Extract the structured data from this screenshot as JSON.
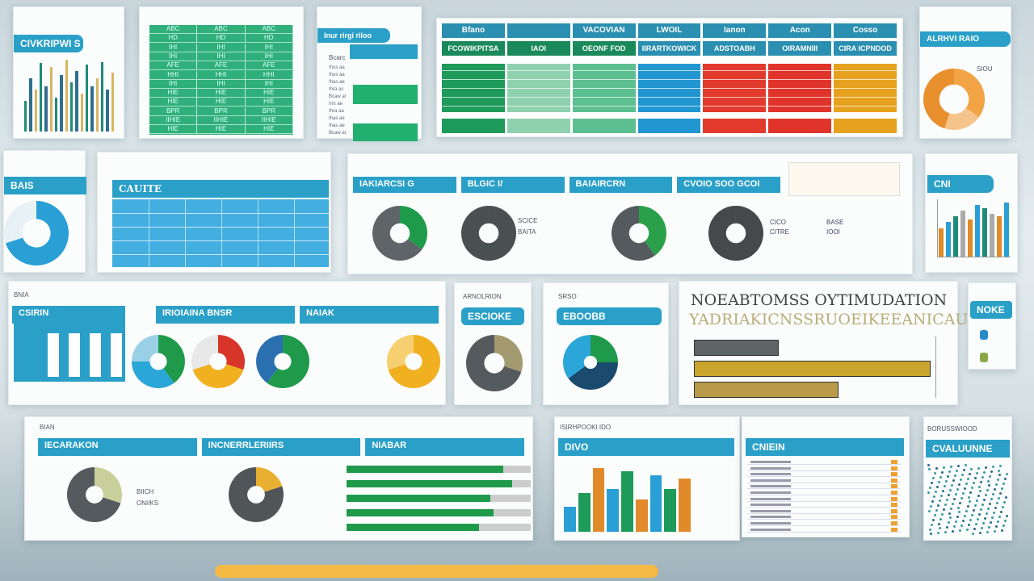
{
  "panels": {
    "p1": {
      "title": "CIVKRIPWI S",
      "bars": [
        40,
        70,
        55,
        90,
        60,
        85,
        45,
        75,
        95,
        65,
        80,
        50,
        88,
        60,
        70,
        92,
        55,
        78
      ],
      "colors": [
        "#1f8a7a",
        "#2f6f8f",
        "#d7b660"
      ]
    },
    "p2": {
      "rows": [
        "ABC",
        "HD",
        "IHI",
        "IHI",
        "AFE",
        "HHI",
        "IHI",
        "HIE",
        "HIE",
        "BPR",
        "IIHIE",
        "HIE"
      ]
    },
    "p3": {
      "title": "Inur rirgi riloo",
      "sub": "Bcarc",
      "rows": [
        "Ihus aa",
        "Ihus aa",
        "Ihas ae",
        "Ihra ac",
        "Bcaw ar",
        "Irm ae",
        "Ihra aa",
        "Ihas ae",
        "Ihas ae",
        "Bcaw ar"
      ]
    },
    "p4": {
      "headers": [
        "Bfano",
        "",
        "VACOVIAN",
        "LWOIL",
        "Ianon",
        "Acon",
        "Cosso"
      ],
      "subheaders": [
        "FCOWIKPITSA",
        "IAOI",
        "OEONF FOD",
        "IIRARTKOWICK",
        "ADSTOABH",
        "OIRAMNIII",
        "CIRA ICPNDOD"
      ],
      "colors": [
        "#1e9a5a",
        "#8fd1ad",
        "#5cbf8f",
        "#2196d0",
        "#e23a2c",
        "#e0342a",
        "#e6a21f"
      ]
    },
    "p5": {
      "title": "ALRHVI RAIO",
      "legend": "SIOU",
      "donut": [
        {
          "v": 35,
          "c": "#f2a445"
        },
        {
          "v": 20,
          "c": "#f4c48a"
        },
        {
          "v": 45,
          "c": "#e88f2e"
        }
      ]
    },
    "p6": {
      "title": "BAIS",
      "donut": [
        {
          "v": 70,
          "c": "#2a9fd6"
        },
        {
          "v": 30,
          "c": "#e8f2f6"
        }
      ]
    },
    "p7": {
      "title": "CAUITE"
    },
    "p8": {
      "tabs": [
        "IAKIARCSI G",
        "BLGIC I/",
        "BAIAIRCRN",
        "CVOIO SOO GCOI"
      ],
      "labels": [
        "SCICE",
        "BAITA"
      ],
      "donuts": [
        [
          {
            "v": 35,
            "c": "#1e9a4a"
          },
          {
            "v": 65,
            "c": "#5f6468"
          }
        ],
        [
          {
            "v": 100,
            "c": "#4a4f52"
          }
        ],
        [
          {
            "v": 40,
            "c": "#2aa04a"
          },
          {
            "v": 60,
            "c": "#555a5e"
          }
        ],
        [
          {
            "v": 100,
            "c": "#45494c"
          }
        ]
      ],
      "legend": [
        "CICO",
        "BASE",
        "CITRE",
        "IOOI"
      ]
    },
    "p9": {
      "title": "CNI",
      "bars": [
        50,
        60,
        70,
        80,
        65,
        90,
        85,
        75,
        70,
        95
      ],
      "colors": [
        "#e08a2a",
        "#2a9fd6",
        "#1f8a7a",
        "#aaa"
      ]
    },
    "p10": {
      "tabs": [
        "CSIRIN",
        "IRIOIAINA BNSR",
        "NAIAK"
      ],
      "header": "BNIA",
      "donuts": [
        [
          {
            "v": 40,
            "c": "#1e9a4a"
          },
          {
            "v": 35,
            "c": "#2aa6d8"
          },
          {
            "v": 25,
            "c": "#9ad0e6"
          }
        ],
        [
          {
            "v": 30,
            "c": "#d8352a"
          },
          {
            "v": 40,
            "c": "#f0b020"
          },
          {
            "v": 30,
            "c": "#e8e8e8"
          }
        ],
        [
          {
            "v": 60,
            "c": "#1e9a4a"
          },
          {
            "v": 40,
            "c": "#2a70b0"
          }
        ],
        [
          {
            "v": 70,
            "c": "#f0b020"
          },
          {
            "v": 30,
            "c": "#f6d070"
          }
        ]
      ]
    },
    "p11": {
      "title": "ESCIOKE",
      "header": "ARNOLRION",
      "donut": [
        {
          "v": 30,
          "c": "#a49a70"
        },
        {
          "v": 70,
          "c": "#555a5e"
        }
      ]
    },
    "p12": {
      "title": "EBOOBB",
      "header": "SRSO",
      "donut": [
        {
          "v": 25,
          "c": "#1e9a4a"
        },
        {
          "v": 40,
          "c": "#1a4a6e"
        },
        {
          "v": 35,
          "c": "#2aa6d8"
        }
      ]
    },
    "p13": {
      "title": "NOEABTOMSS OYTIMUDATION",
      "subtitle": "YADRIAKICNSSRUOEIKEEANICAUY",
      "bars": [
        {
          "v": 35,
          "c": "#5e6466"
        },
        {
          "v": 98,
          "c": "#c9a52e"
        },
        {
          "v": 60,
          "c": "#b89a48"
        }
      ]
    },
    "p14": {
      "title": "NOKE"
    },
    "p15": {
      "tabs": [
        "IECARAKON",
        "INCNERRLERIIRS",
        "NIABAR"
      ],
      "header": "BIAN",
      "legend": [
        "BIICH",
        "ONIIKS"
      ],
      "donuts": [
        [
          {
            "v": 30,
            "c": "#c8cf9a"
          },
          {
            "v": 70,
            "c": "#555a5e"
          }
        ],
        [
          {
            "v": 20,
            "c": "#e8b030"
          },
          {
            "v": 80,
            "c": "#505558"
          }
        ]
      ],
      "progress": [
        0.85,
        0.9,
        0.78,
        0.8,
        0.72
      ]
    },
    "p16": {
      "title": "DIVO",
      "header": "ISIRHPOOKI IDO",
      "bars": [
        35,
        55,
        90,
        60,
        85,
        45,
        80,
        60,
        75
      ],
      "colors": [
        "#2a9fd6",
        "#1e9a5a",
        "#e08a2a"
      ]
    },
    "p17": {
      "title": "CNIEIN",
      "rows": 12
    },
    "p18": {
      "title": "CVALUUNNE",
      "header": "BORUSSWIOOD"
    }
  },
  "footer": {
    "progress": 1.0,
    "color": "#f4b942"
  }
}
